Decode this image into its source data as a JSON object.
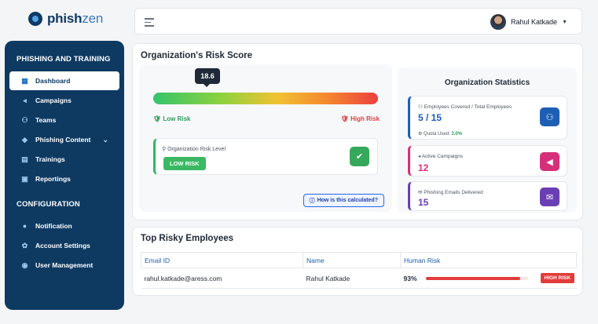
{
  "brand": {
    "name_bold": "phish",
    "name_light": "zen"
  },
  "topbar": {
    "menu_icon": "hamburger-icon",
    "user_name": "Rahul Katkade"
  },
  "sidebar": {
    "section1": "PHISHING AND TRAINING",
    "items": [
      {
        "label": "Dashboard",
        "icon": "dashboard-icon",
        "active": true
      },
      {
        "label": "Campaigns",
        "icon": "megaphone-icon"
      },
      {
        "label": "Teams",
        "icon": "users-icon"
      },
      {
        "label": "Phishing Content",
        "icon": "content-icon"
      },
      {
        "label": "Trainings",
        "icon": "training-icon"
      },
      {
        "label": "Reportings",
        "icon": "report-icon"
      }
    ],
    "section2": "CONFIGURATION",
    "config_items": [
      {
        "label": "Notification",
        "icon": "bell-icon"
      },
      {
        "label": "Account Settings",
        "icon": "gear-icon"
      },
      {
        "label": "User Management",
        "icon": "user-manage-icon"
      }
    ]
  },
  "risk": {
    "title": "Organization's Risk Score",
    "score": "18.6",
    "score_fraction": 0.186,
    "low_label": "Low Risk",
    "high_label": "High Risk",
    "level_label": "Organization Risk Level",
    "level_value": "LOW RISK",
    "calc_button": "How is this calculated?"
  },
  "stats": {
    "title": "Organization Statistics",
    "employees_label": "Employees Covered / Total Employees",
    "employees_value": "5 / 15",
    "quota_label": "Quota Used:",
    "quota_value": "3.0%",
    "campaigns_label": "Active Campaigns",
    "campaigns_value": "12",
    "emails_label": "Phishing Emails Delivered",
    "emails_value": "15",
    "colors": {
      "blue": "#1d5fb4",
      "pink": "#d6307a",
      "purple": "#6a3fb5"
    }
  },
  "employees": {
    "title": "Top Risky Employees",
    "columns": [
      "Email ID",
      "Name",
      "Human Risk"
    ],
    "rows": [
      {
        "email": "rahul.katkade@aress.com",
        "name": "Rahul Katkade",
        "risk": "93%",
        "risk_fraction": 0.93,
        "badge": "HIGH RISK"
      }
    ]
  }
}
